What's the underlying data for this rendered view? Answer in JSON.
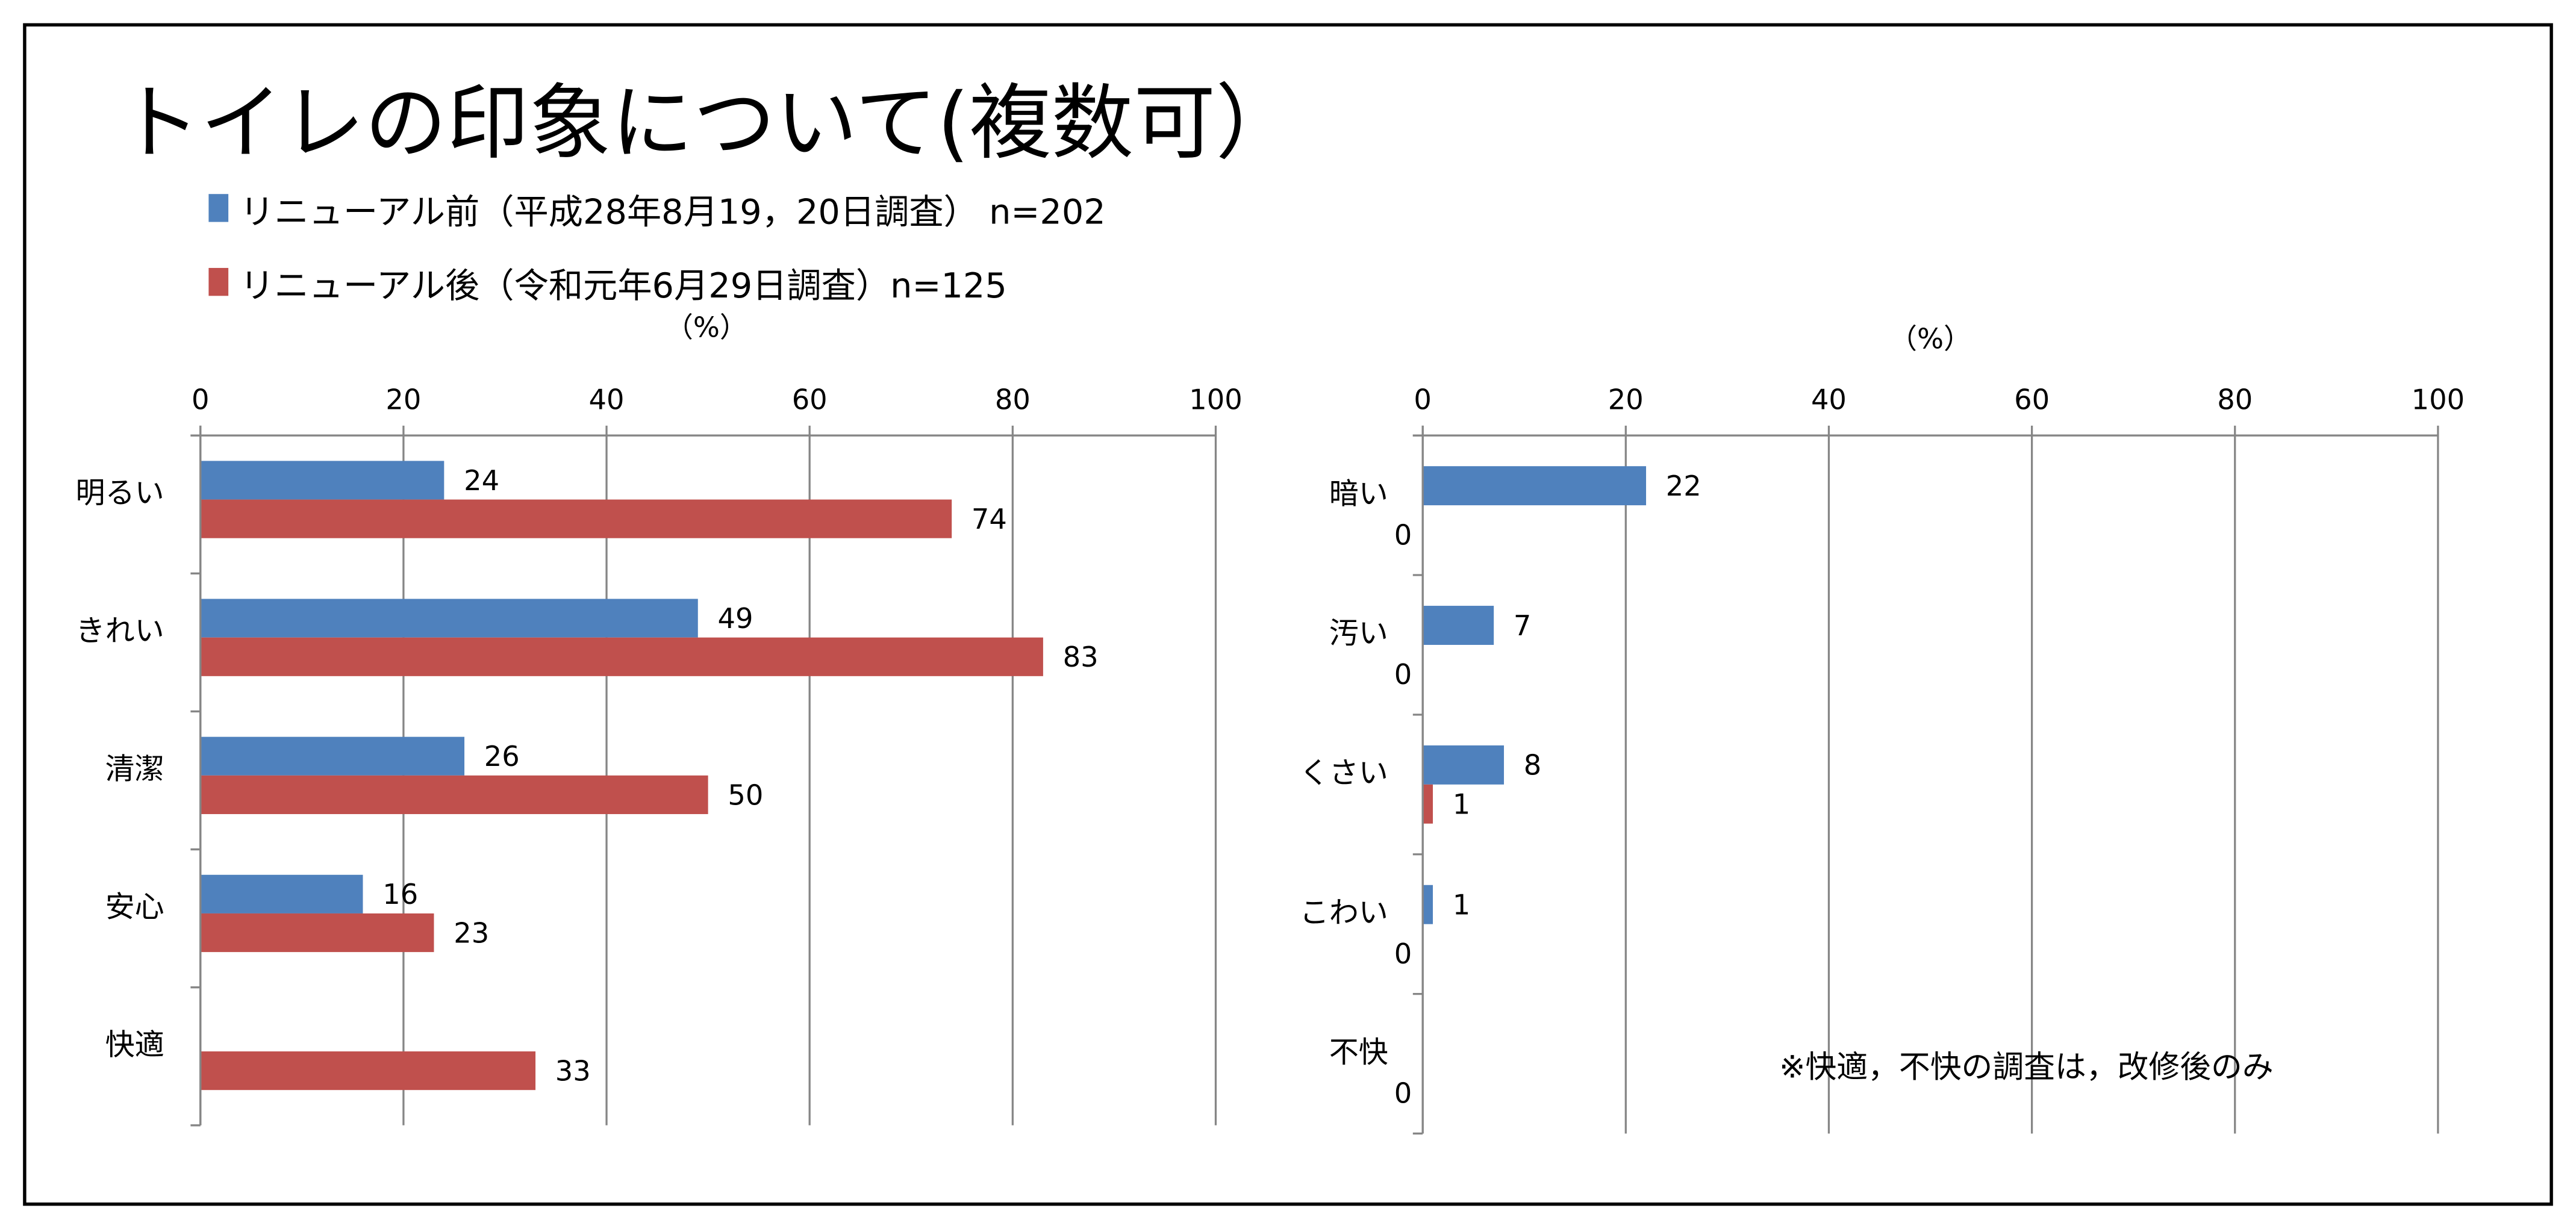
{
  "title": "トイレの印象について(複数可）",
  "legend": [
    {
      "label": "リニューアル前（平成28年8月19，20日調査） n=202",
      "color": "#4F81BD"
    },
    {
      "label": "リニューアル後（令和元年6月29日調査）n=125",
      "color": "#C0504D"
    }
  ],
  "note": "※快適，不快の調査は，改修後のみ",
  "chart_data": [
    {
      "type": "bar",
      "orientation": "horizontal",
      "unit_label": "（%）",
      "xlim": [
        0,
        100
      ],
      "ticks": [
        "0",
        "20",
        "40",
        "60",
        "80",
        "100"
      ],
      "grid": true,
      "categories": [
        "明るい",
        "きれい",
        "清潔",
        "安心",
        "快適"
      ],
      "series": [
        {
          "name": "リニューアル前",
          "color": "#4F81BD",
          "values": [
            24,
            49,
            26,
            16,
            null
          ]
        },
        {
          "name": "リニューアル後",
          "color": "#C0504D",
          "values": [
            74,
            83,
            50,
            23,
            33
          ]
        }
      ]
    },
    {
      "type": "bar",
      "orientation": "horizontal",
      "unit_label": "（%）",
      "xlim": [
        0,
        100
      ],
      "ticks": [
        "0",
        "20",
        "40",
        "60",
        "80",
        "100"
      ],
      "grid": true,
      "categories": [
        "暗い",
        "汚い",
        "くさい",
        "こわい",
        "不快"
      ],
      "series": [
        {
          "name": "リニューアル前",
          "color": "#4F81BD",
          "values": [
            22,
            7,
            8,
            1,
            null
          ]
        },
        {
          "name": "リニューアル後",
          "color": "#C0504D",
          "values": [
            0,
            0,
            1,
            0,
            0
          ]
        }
      ]
    }
  ]
}
